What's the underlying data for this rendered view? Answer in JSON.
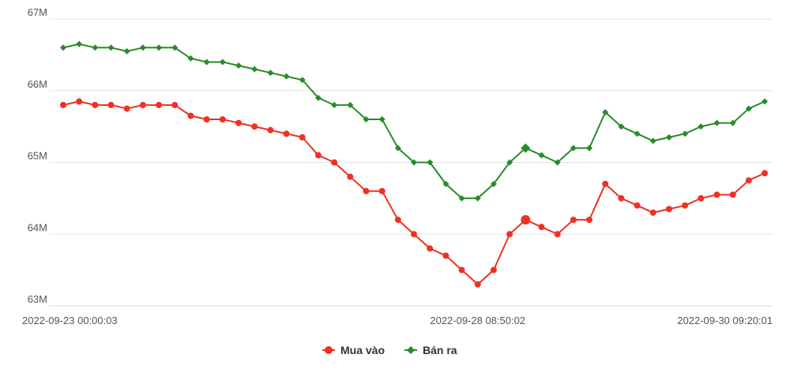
{
  "chart_data": {
    "type": "line",
    "x_tick_labels": [
      "2022-09-23 00:00:03",
      "2022-09-28 08:50:02",
      "2022-09-30 09:20:01"
    ],
    "x_tick_indices": [
      0,
      26,
      45
    ],
    "y_tick_labels": [
      "63M",
      "64M",
      "65M",
      "66M",
      "67M"
    ],
    "y_tick_values": [
      63,
      64,
      65,
      66,
      67
    ],
    "ylim": [
      63,
      67
    ],
    "y_unit": "million",
    "grid": "horizontal",
    "legend_position": "bottom-center",
    "highlighted_index": 29,
    "series": [
      {
        "name": "Mua vào",
        "color": "#ee3124",
        "marker": "circle",
        "values": [
          65.8,
          65.85,
          65.8,
          65.8,
          65.75,
          65.8,
          65.8,
          65.8,
          65.65,
          65.6,
          65.6,
          65.55,
          65.5,
          65.45,
          65.4,
          65.35,
          65.1,
          65.0,
          64.8,
          64.6,
          64.6,
          64.2,
          64.0,
          63.8,
          63.7,
          63.5,
          63.3,
          63.5,
          64.0,
          64.2,
          64.1,
          64.0,
          64.2,
          64.2,
          64.7,
          64.5,
          64.4,
          64.3,
          64.35,
          64.4,
          64.5,
          64.55,
          64.55,
          64.75,
          64.85
        ]
      },
      {
        "name": "Bán ra",
        "color": "#2a8a2a",
        "marker": "diamond",
        "values": [
          66.6,
          66.65,
          66.6,
          66.6,
          66.55,
          66.6,
          66.6,
          66.6,
          66.45,
          66.4,
          66.4,
          66.35,
          66.3,
          66.25,
          66.2,
          66.15,
          65.9,
          65.8,
          65.8,
          65.6,
          65.6,
          65.2,
          65.0,
          65.0,
          64.7,
          64.5,
          64.5,
          64.7,
          65.0,
          65.2,
          65.1,
          65.0,
          65.2,
          65.2,
          65.7,
          65.5,
          65.4,
          65.3,
          65.35,
          65.4,
          65.5,
          65.55,
          65.55,
          65.75,
          65.85
        ]
      }
    ]
  }
}
